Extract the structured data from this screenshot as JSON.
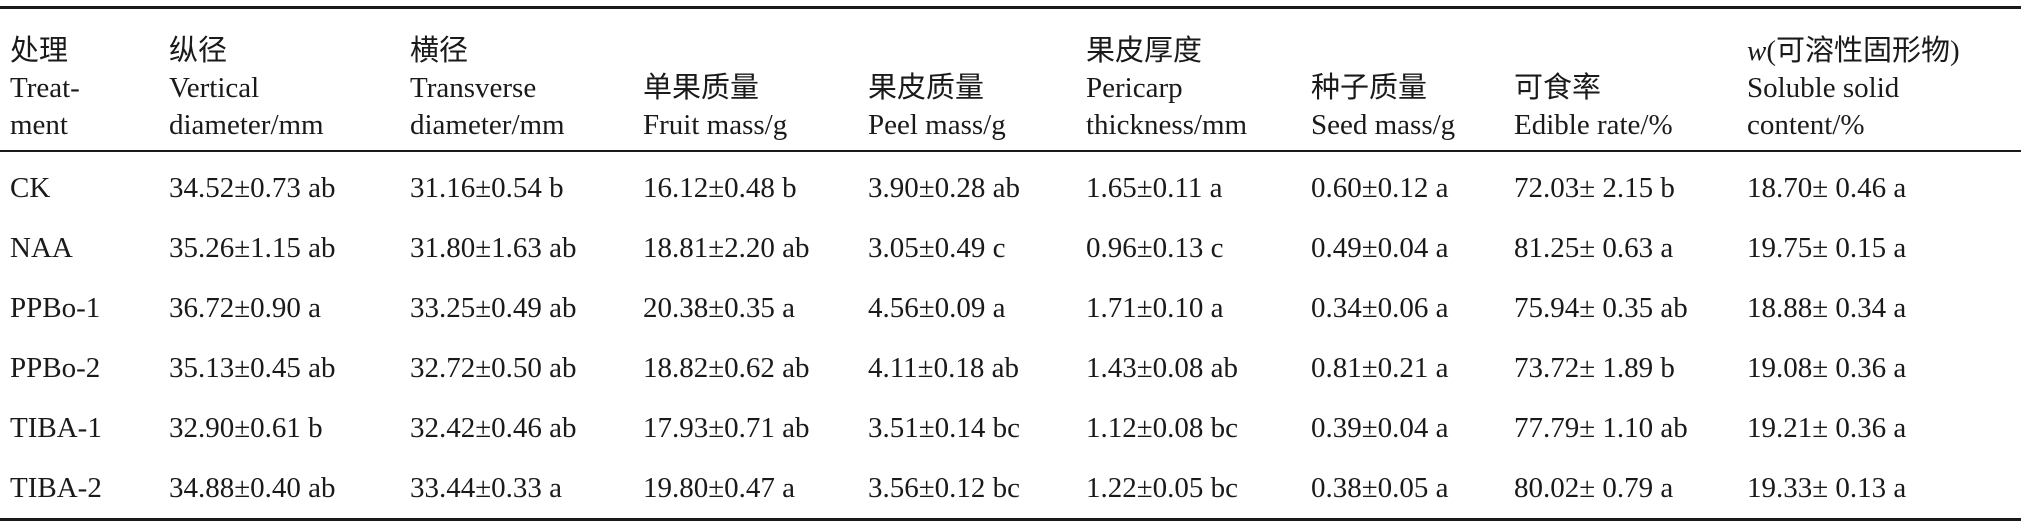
{
  "headers": [
    {
      "lines": [
        "处理",
        "Treat-",
        "ment"
      ]
    },
    {
      "lines": [
        "纵径",
        "Vertical",
        "diameter/mm"
      ]
    },
    {
      "lines": [
        "横径",
        "Transverse",
        "diameter/mm"
      ]
    },
    {
      "lines": [
        "单果质量",
        "Fruit mass/g"
      ]
    },
    {
      "lines": [
        "果皮质量",
        "Peel mass/g"
      ]
    },
    {
      "lines": [
        "果皮厚度",
        "Pericarp",
        "thickness/mm"
      ]
    },
    {
      "lines": [
        "种子质量",
        "Seed mass/g"
      ]
    },
    {
      "lines": [
        "可食率",
        "Edible rate/%"
      ]
    },
    {
      "w_symbol": "w",
      "lines": [
        "(可溶性固形物)",
        "Soluble solid",
        "content/%"
      ]
    }
  ],
  "rows": [
    [
      "CK",
      "34.52±0.73 ab",
      "31.16±0.54 b",
      "16.12±0.48 b",
      "3.90±0.28 ab",
      "1.65±0.11 a",
      "0.60±0.12 a",
      "72.03± 2.15 b",
      "18.70± 0.46 a"
    ],
    [
      "NAA",
      "35.26±1.15 ab",
      "31.80±1.63 ab",
      "18.81±2.20 ab",
      "3.05±0.49 c",
      "0.96±0.13 c",
      "0.49±0.04 a",
      "81.25± 0.63 a",
      "19.75± 0.15 a"
    ],
    [
      "PPBo-1",
      "36.72±0.90 a",
      "33.25±0.49 ab",
      "20.38±0.35 a",
      "4.56±0.09 a",
      "1.71±0.10 a",
      "0.34±0.06 a",
      "75.94± 0.35 ab",
      "18.88± 0.34 a"
    ],
    [
      "PPBo-2",
      "35.13±0.45 ab",
      "32.72±0.50 ab",
      "18.82±0.62 ab",
      "4.11±0.18 ab",
      "1.43±0.08 ab",
      "0.81±0.21 a",
      "73.72± 1.89 b",
      "19.08± 0.36 a"
    ],
    [
      "TIBA-1",
      "32.90±0.61 b",
      "32.42±0.46 ab",
      "17.93±0.71 ab",
      "3.51±0.14 bc",
      "1.12±0.08 bc",
      "0.39±0.04 a",
      "77.79± 1.10 ab",
      "19.21± 0.36 a"
    ],
    [
      "TIBA-2",
      "34.88±0.40 ab",
      "33.44±0.33 a",
      "19.80±0.47 a",
      "3.56±0.12 bc",
      "1.22±0.05 bc",
      "0.38±0.05 a",
      "80.02± 0.79 a",
      "19.33± 0.13 a"
    ]
  ]
}
